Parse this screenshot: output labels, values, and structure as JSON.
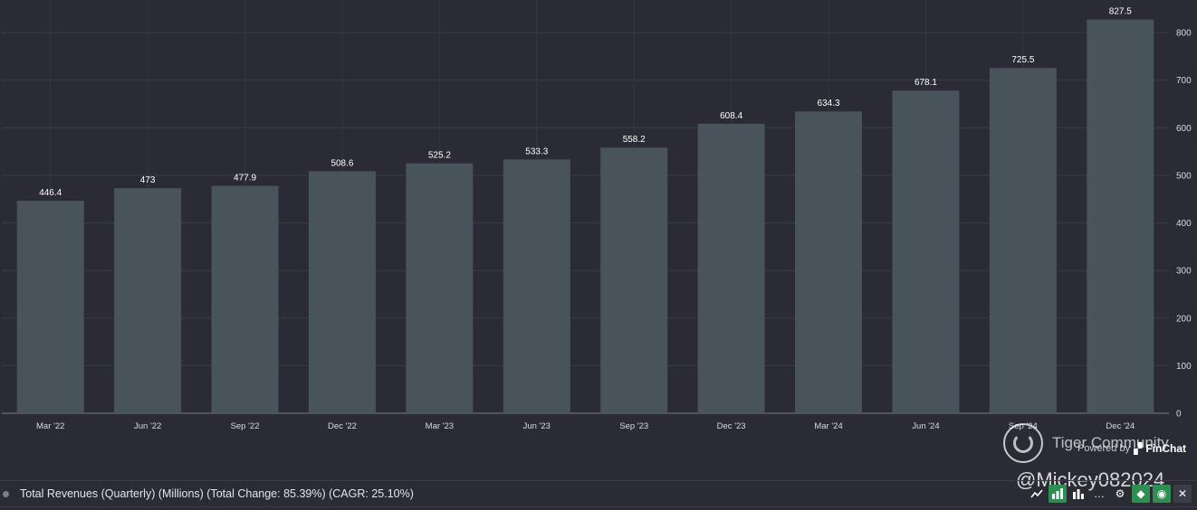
{
  "chart_data": {
    "type": "bar",
    "categories": [
      "Mar '22",
      "Jun '22",
      "Sep '22",
      "Dec '22",
      "Mar '23",
      "Jun '23",
      "Sep '23",
      "Dec '23",
      "Mar '24",
      "Jun '24",
      "Sep '24",
      "Dec '24"
    ],
    "values": [
      446.4,
      473,
      477.9,
      508.6,
      525.2,
      533.3,
      558.2,
      608.4,
      634.3,
      678.1,
      725.5,
      827.5
    ],
    "value_labels": [
      "446.4",
      "473",
      "477.9",
      "508.6",
      "525.2",
      "533.3",
      "558.2",
      "608.4",
      "634.3",
      "678.1",
      "725.5",
      "827.5"
    ],
    "y_ticks": [
      0,
      100,
      200,
      300,
      400,
      500,
      600,
      700,
      800
    ],
    "ylim": [
      0,
      860
    ],
    "y_axis_side": "right",
    "grid": true,
    "title": "",
    "xlabel": "",
    "ylabel": "",
    "legend": "Total Revenues (Quarterly) (Millions) (Total Change: 85.39%) (CAGR: 25.10%)",
    "bar_color": "#48535b",
    "background": "#2a2b35"
  },
  "branding": {
    "powered_by": "Powered by",
    "brand": "FinChat"
  },
  "watermark": {
    "name": "Tiger Community",
    "handle": "@Mickey082024"
  },
  "toolbar": {
    "icons": [
      "line-chart-icon",
      "bar-chart-icon",
      "stacked-bar-icon",
      "more-icon",
      "gear-icon",
      "tag-icon",
      "eye-icon",
      "close-icon"
    ]
  }
}
